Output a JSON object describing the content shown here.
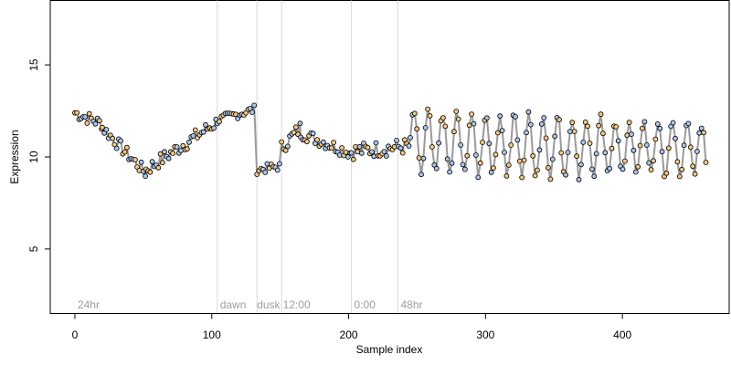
{
  "chart_data": {
    "type": "scatter",
    "title": "",
    "xlabel": "Sample index",
    "ylabel": "Expression",
    "xlim": [
      -18,
      478
    ],
    "ylim": [
      1.5,
      18.5
    ],
    "x_ticks": [
      0,
      100,
      200,
      300,
      400
    ],
    "y_ticks": [
      5,
      10,
      15
    ],
    "grid": false,
    "legend": "none",
    "vertical_lines": [
      104,
      133,
      151,
      202,
      236
    ],
    "annotations": [
      {
        "text": "24hr",
        "x": 2
      },
      {
        "text": "dawn",
        "x": 106
      },
      {
        "text": "dusk",
        "x": 133
      },
      {
        "text": "12:00",
        "x": 152
      },
      {
        "text": "0:00",
        "x": 204
      },
      {
        "text": "48hr",
        "x": 238
      }
    ],
    "colors": {
      "point_fill_a": "#f5c77e",
      "point_fill_b": "#a9c7ee",
      "point_stroke": "#000000",
      "trend_line": "#9a9a9a",
      "guide_line": "#d9d9d9",
      "annotation_text": "#9e9e9e"
    },
    "series": [
      {
        "marker": "circle",
        "segments": [
          {
            "x_start": 0,
            "x_end": 20,
            "y_start": 12.4,
            "y_end": 11.8,
            "noise": 0.35
          },
          {
            "x_start": 20,
            "x_end": 52,
            "y_start": 11.6,
            "y_end": 9.1,
            "noise": 0.35
          },
          {
            "x_start": 52,
            "x_end": 104,
            "y_start": 9.3,
            "y_end": 11.9,
            "noise": 0.4
          },
          {
            "x_start": 104,
            "x_end": 132,
            "y_start": 12.0,
            "y_end": 12.6,
            "noise": 0.25
          },
          {
            "x_start": 133,
            "x_end": 151,
            "y_start": 9.3,
            "y_end": 9.5,
            "noise": 0.25
          },
          {
            "x_start": 151,
            "x_end": 165,
            "y_start": 10.5,
            "y_end": 11.6,
            "noise": 0.4
          },
          {
            "x_start": 165,
            "x_end": 202,
            "y_start": 11.3,
            "y_end": 10.2,
            "noise": 0.35
          },
          {
            "x_start": 202,
            "x_end": 245,
            "y_start": 10.3,
            "y_end": 10.6,
            "noise": 0.45
          }
        ],
        "oscillation": {
          "x_start": 245,
          "x_end": 462,
          "center_start": 10.8,
          "center_end": 10.4,
          "amplitude_start": 1.7,
          "amplitude_end": 1.4,
          "period": 10.5
        }
      }
    ]
  }
}
